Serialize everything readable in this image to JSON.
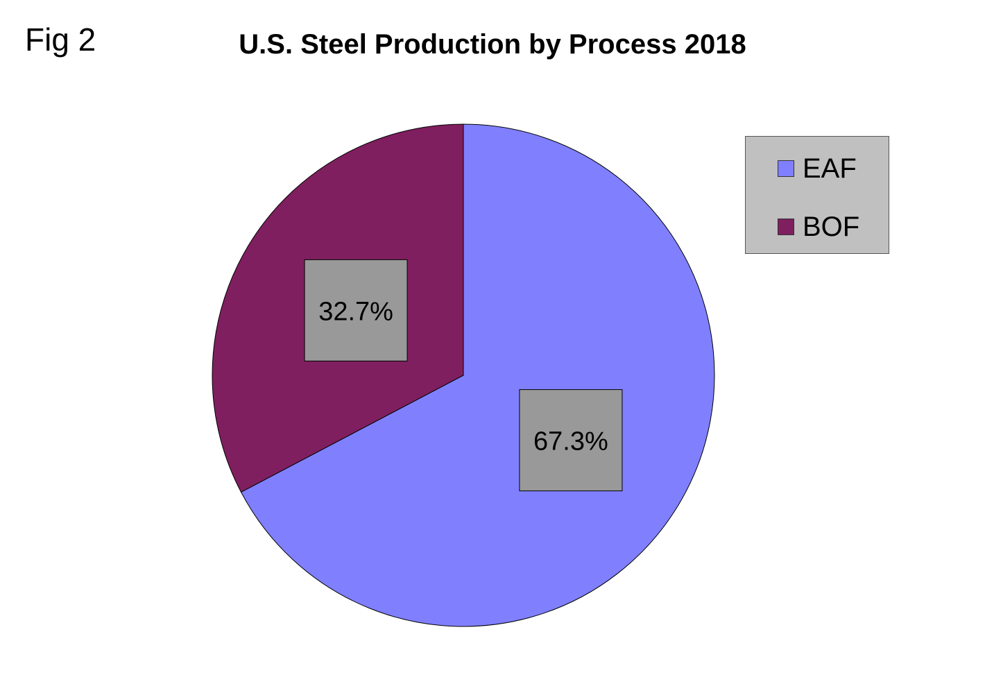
{
  "figure_label": "Fig 2",
  "chart_data": {
    "type": "pie",
    "title": "U.S. Steel Production by Process 2018",
    "categories": [
      "EAF",
      "BOF"
    ],
    "values": [
      67.3,
      32.7
    ],
    "data_labels": [
      "67.3%",
      "32.7%"
    ],
    "colors": [
      "#8080ff",
      "#7f1f5f"
    ],
    "label_box_color": "#999999",
    "start_angle_deg": 0,
    "direction": "clockwise",
    "legend": {
      "placement": "right",
      "background": "#c0c0c0"
    }
  }
}
